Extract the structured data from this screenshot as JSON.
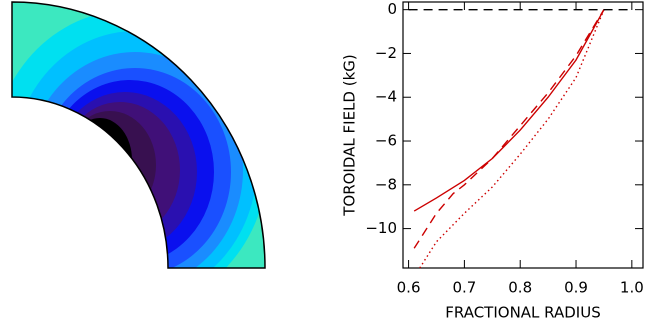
{
  "chart_data": {
    "type": "line",
    "ylabel": "TOROIDAL FIELD (kG)",
    "xlabel": "FRACTIONAL RADIUS",
    "xlim": [
      0.59,
      1.02
    ],
    "ylim": [
      -11.8,
      0.35
    ],
    "xticks": [
      0.6,
      0.7,
      0.8,
      0.9,
      {
        "value": 1,
        "label": "1.0"
      }
    ],
    "yticks": [
      0,
      {
        "value": -2,
        "label": "−2"
      },
      {
        "value": -4,
        "label": "−4"
      },
      {
        "value": -6,
        "label": "−6"
      },
      {
        "value": -8,
        "label": "−8"
      },
      {
        "value": -10,
        "label": "−10"
      }
    ],
    "series": [
      {
        "style": "solid",
        "color": "#cc0000",
        "x": [
          0.61,
          0.65,
          0.7,
          0.75,
          0.8,
          0.85,
          0.9,
          0.95
        ],
        "values": [
          -9.2,
          -8.6,
          -7.8,
          -6.8,
          -5.5,
          -4.0,
          -2.3,
          0
        ]
      },
      {
        "style": "dashed",
        "color": "#cc0000",
        "x": [
          0.61,
          0.63,
          0.65,
          0.68,
          0.7,
          0.75,
          0.8,
          0.85,
          0.9,
          0.95
        ],
        "values": [
          -10.9,
          -10.1,
          -9.3,
          -8.4,
          -8.0,
          -6.8,
          -5.3,
          -3.8,
          -2.1,
          0
        ]
      },
      {
        "style": "dotted",
        "color": "#cc0000",
        "x": [
          0.62,
          0.65,
          0.7,
          0.75,
          0.8,
          0.85,
          0.9,
          0.95
        ],
        "values": [
          -11.8,
          -10.6,
          -9.3,
          -8.1,
          -6.6,
          -5.0,
          -3.1,
          0
        ]
      },
      {
        "style": "dashed",
        "color": "#000000",
        "x": [
          0.6,
          1.0
        ],
        "values": [
          0,
          0
        ]
      }
    ]
  }
}
